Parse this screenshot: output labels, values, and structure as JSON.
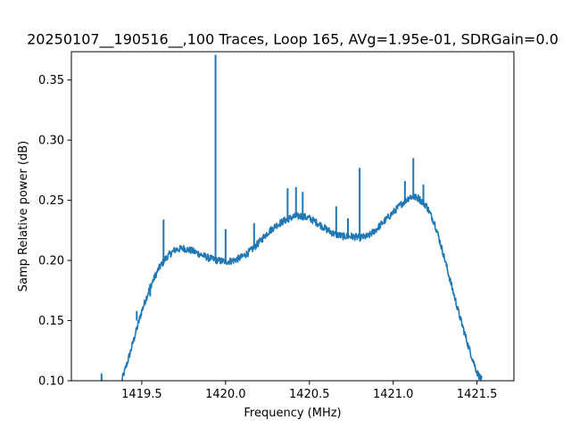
{
  "chart_data": {
    "type": "line",
    "title": "20250107__190516__,100 Traces, Loop 165, AVg=1.95e-01, SDRGain=0.0",
    "xlabel": "Frequency (MHz)",
    "ylabel": "Samp Relative power (dB)",
    "xlim": [
      1419.08,
      1421.72
    ],
    "ylim": [
      0.1,
      0.3735
    ],
    "xticks": [
      1419.5,
      1420.0,
      1420.5,
      1421.0,
      1421.5
    ],
    "xtick_labels": [
      "1419.5",
      "1420.0",
      "1420.5",
      "1421.0",
      "1421.5"
    ],
    "yticks": [
      0.1,
      0.15,
      0.2,
      0.25,
      0.3,
      0.35
    ],
    "ytick_labels": [
      "0.10",
      "0.15",
      "0.20",
      "0.25",
      "0.30",
      "0.35"
    ],
    "grid": false,
    "series": [
      {
        "name": "spectrum",
        "color": "#1f77b4",
        "baseline": {
          "x": [
            1419.38,
            1419.42,
            1419.46,
            1419.5,
            1419.55,
            1419.6,
            1419.65,
            1419.7,
            1419.75,
            1419.8,
            1419.85,
            1419.9,
            1419.95,
            1420.0,
            1420.05,
            1420.1,
            1420.15,
            1420.2,
            1420.25,
            1420.3,
            1420.35,
            1420.4,
            1420.45,
            1420.5,
            1420.55,
            1420.6,
            1420.65,
            1420.7,
            1420.75,
            1420.8,
            1420.85,
            1420.9,
            1420.95,
            1421.0,
            1421.05,
            1421.1,
            1421.15,
            1421.2,
            1421.25,
            1421.3,
            1421.35,
            1421.4,
            1421.45,
            1421.5,
            1421.53
          ],
          "y": [
            0.1,
            0.118,
            0.138,
            0.158,
            0.178,
            0.193,
            0.203,
            0.209,
            0.21,
            0.208,
            0.205,
            0.202,
            0.2,
            0.199,
            0.2,
            0.203,
            0.208,
            0.215,
            0.223,
            0.229,
            0.233,
            0.236,
            0.237,
            0.235,
            0.231,
            0.226,
            0.222,
            0.22,
            0.22,
            0.219,
            0.22,
            0.226,
            0.233,
            0.24,
            0.247,
            0.253,
            0.252,
            0.245,
            0.23,
            0.205,
            0.178,
            0.152,
            0.128,
            0.107,
            0.1
          ]
        },
        "spikes": [
          {
            "x": 1419.26,
            "from": 0.1,
            "to": 0.106
          },
          {
            "x": 1419.47,
            "from": 0.15,
            "to": 0.158
          },
          {
            "x": 1419.55,
            "from": 0.17,
            "to": 0.18
          },
          {
            "x": 1419.63,
            "from": 0.198,
            "to": 0.234
          },
          {
            "x": 1419.94,
            "from": 0.2,
            "to": 0.371
          },
          {
            "x": 1420.0,
            "from": 0.2,
            "to": 0.226
          },
          {
            "x": 1420.17,
            "from": 0.212,
            "to": 0.231
          },
          {
            "x": 1420.37,
            "from": 0.232,
            "to": 0.26
          },
          {
            "x": 1420.42,
            "from": 0.236,
            "to": 0.261
          },
          {
            "x": 1420.46,
            "from": 0.236,
            "to": 0.257
          },
          {
            "x": 1420.66,
            "from": 0.224,
            "to": 0.245
          },
          {
            "x": 1420.73,
            "from": 0.22,
            "to": 0.235
          },
          {
            "x": 1420.8,
            "from": 0.219,
            "to": 0.277
          },
          {
            "x": 1421.07,
            "from": 0.247,
            "to": 0.266
          },
          {
            "x": 1421.12,
            "from": 0.253,
            "to": 0.285
          },
          {
            "x": 1421.18,
            "from": 0.25,
            "to": 0.263
          }
        ]
      }
    ]
  }
}
